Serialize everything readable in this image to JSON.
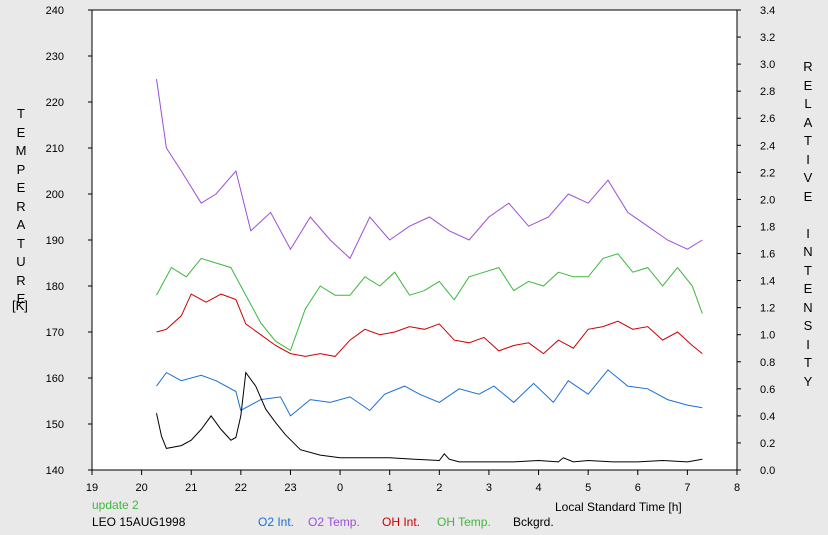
{
  "chart_data": {
    "type": "line",
    "left_axis": {
      "label": "TEMPERATURE",
      "unit": "[K]",
      "range": [
        140,
        240
      ],
      "ticks": [
        "140",
        "150",
        "160",
        "170",
        "180",
        "190",
        "200",
        "210",
        "220",
        "230",
        "240"
      ]
    },
    "right_axis": {
      "label": "RELATIVE INTENSITY",
      "range": [
        0.0,
        3.4
      ],
      "ticks": [
        "0.0",
        "0.2",
        "0.4",
        "0.6",
        "0.8",
        "1.0",
        "1.2",
        "1.4",
        "1.6",
        "1.8",
        "2.0",
        "2.2",
        "2.4",
        "2.6",
        "2.8",
        "3.0",
        "3.2",
        "3.4"
      ]
    },
    "x_axis": {
      "label": "Local Standard Time [h]",
      "range": [
        19,
        32
      ],
      "ticks": [
        "19",
        "20",
        "21",
        "22",
        "23",
        "0",
        "1",
        "2",
        "3",
        "4",
        "5",
        "6",
        "7",
        "8"
      ]
    },
    "series": [
      {
        "name": "O2 Int.",
        "color": "#1a6fd6",
        "axis": "right",
        "x": [
          20.3,
          20.5,
          20.8,
          21.2,
          21.5,
          21.9,
          22.0,
          22.4,
          22.8,
          23.0,
          23.4,
          23.8,
          24.2,
          24.6,
          24.9,
          25.3,
          25.6,
          26.0,
          26.4,
          26.8,
          27.1,
          27.5,
          27.9,
          28.3,
          28.6,
          29.0,
          29.4,
          29.8,
          30.2,
          30.6,
          31.0,
          31.3
        ],
        "y": [
          0.62,
          0.72,
          0.66,
          0.7,
          0.66,
          0.58,
          0.44,
          0.52,
          0.54,
          0.4,
          0.52,
          0.5,
          0.54,
          0.44,
          0.56,
          0.62,
          0.56,
          0.5,
          0.6,
          0.56,
          0.62,
          0.5,
          0.64,
          0.5,
          0.66,
          0.56,
          0.74,
          0.62,
          0.6,
          0.52,
          0.48,
          0.46
        ]
      },
      {
        "name": "O2 Temp.",
        "color": "#9a4fd6",
        "axis": "left",
        "x": [
          20.3,
          20.5,
          20.8,
          21.2,
          21.5,
          21.9,
          22.2,
          22.6,
          23.0,
          23.4,
          23.8,
          24.2,
          24.6,
          25.0,
          25.4,
          25.8,
          26.2,
          26.6,
          27.0,
          27.4,
          27.8,
          28.2,
          28.6,
          29.0,
          29.4,
          29.8,
          30.2,
          30.6,
          31.0,
          31.3
        ],
        "y": [
          225,
          210,
          205,
          198,
          200,
          205,
          192,
          196,
          188,
          195,
          190,
          186,
          195,
          190,
          193,
          195,
          192,
          190,
          195,
          198,
          193,
          195,
          200,
          198,
          203,
          196,
          193,
          190,
          188,
          190
        ]
      },
      {
        "name": "OH Int.",
        "color": "#cc0000",
        "axis": "right",
        "x": [
          20.3,
          20.5,
          20.8,
          21.0,
          21.3,
          21.6,
          21.9,
          22.1,
          22.4,
          22.7,
          23.0,
          23.3,
          23.6,
          23.9,
          24.2,
          24.5,
          24.8,
          25.1,
          25.4,
          25.7,
          26.0,
          26.3,
          26.6,
          26.9,
          27.2,
          27.5,
          27.8,
          28.1,
          28.4,
          28.7,
          29.0,
          29.3,
          29.6,
          29.9,
          30.2,
          30.5,
          30.8,
          31.1,
          31.3
        ],
        "y": [
          1.02,
          1.04,
          1.14,
          1.3,
          1.24,
          1.3,
          1.26,
          1.08,
          1.0,
          0.92,
          0.86,
          0.84,
          0.86,
          0.84,
          0.96,
          1.04,
          1.0,
          1.02,
          1.06,
          1.04,
          1.08,
          0.96,
          0.94,
          0.98,
          0.88,
          0.92,
          0.94,
          0.86,
          0.96,
          0.9,
          1.04,
          1.06,
          1.1,
          1.04,
          1.06,
          0.96,
          1.02,
          0.92,
          0.86
        ]
      },
      {
        "name": "OH Temp.",
        "color": "#3cb83c",
        "axis": "left",
        "x": [
          20.3,
          20.6,
          20.9,
          21.2,
          21.5,
          21.8,
          22.1,
          22.4,
          22.7,
          23.0,
          23.3,
          23.6,
          23.9,
          24.2,
          24.5,
          24.8,
          25.1,
          25.4,
          25.7,
          26.0,
          26.3,
          26.6,
          26.9,
          27.2,
          27.5,
          27.8,
          28.1,
          28.4,
          28.7,
          29.0,
          29.3,
          29.6,
          29.9,
          30.2,
          30.5,
          30.8,
          31.1,
          31.3
        ],
        "y": [
          178,
          184,
          182,
          186,
          185,
          184,
          178,
          172,
          168,
          166,
          175,
          180,
          178,
          178,
          182,
          180,
          183,
          178,
          179,
          181,
          177,
          182,
          183,
          184,
          179,
          181,
          180,
          183,
          182,
          182,
          186,
          187,
          183,
          184,
          180,
          184,
          180,
          174
        ]
      },
      {
        "name": "Bckgrd.",
        "color": "#000000",
        "axis": "right",
        "x": [
          20.3,
          20.4,
          20.5,
          20.8,
          21.0,
          21.2,
          21.4,
          21.5,
          21.6,
          21.8,
          21.9,
          22.0,
          22.1,
          22.3,
          22.5,
          22.7,
          22.9,
          23.2,
          23.6,
          24.0,
          24.5,
          25.0,
          25.5,
          26.0,
          26.1,
          26.2,
          26.4,
          27.0,
          27.5,
          28.0,
          28.4,
          28.5,
          28.7,
          29.0,
          29.5,
          30.0,
          30.5,
          31.0,
          31.3
        ],
        "y": [
          0.42,
          0.25,
          0.16,
          0.18,
          0.22,
          0.3,
          0.4,
          0.35,
          0.3,
          0.22,
          0.24,
          0.4,
          0.72,
          0.62,
          0.45,
          0.35,
          0.26,
          0.15,
          0.11,
          0.09,
          0.09,
          0.09,
          0.08,
          0.07,
          0.12,
          0.08,
          0.06,
          0.06,
          0.06,
          0.07,
          0.06,
          0.09,
          0.06,
          0.07,
          0.06,
          0.06,
          0.07,
          0.06,
          0.08
        ]
      }
    ]
  },
  "labels": {
    "update": "update 2",
    "station": "LEO 15AUG1998"
  }
}
